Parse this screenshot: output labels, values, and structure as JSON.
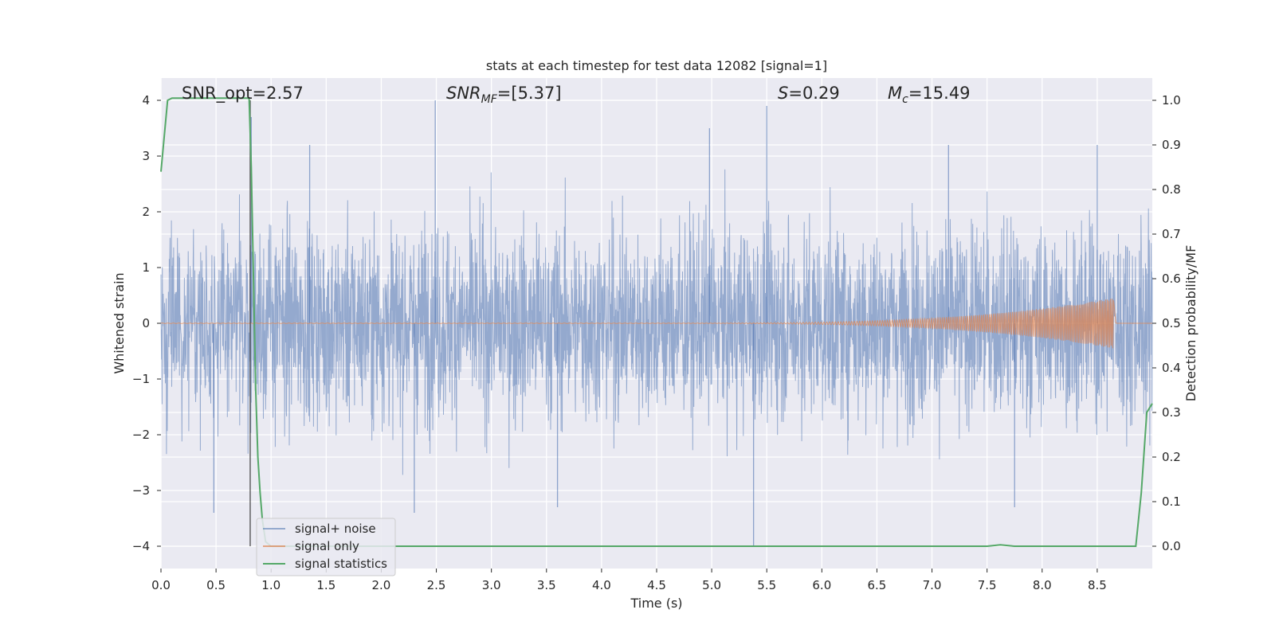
{
  "chart_data": {
    "type": "line",
    "title": "stats at each timestep for test data 12082 [signal=1]",
    "xlabel": "Time (s)",
    "ylabel": "Whitened strain",
    "ylabel_right": "Detection probability/MF",
    "xlim": [
      0.0,
      9.0
    ],
    "ylim": [
      -4.4,
      4.4
    ],
    "ylim_right": [
      -0.05,
      1.05
    ],
    "xticks": [
      "0.0",
      "0.5",
      "1.0",
      "1.5",
      "2.0",
      "2.5",
      "3.0",
      "3.5",
      "4.0",
      "4.5",
      "5.0",
      "5.5",
      "6.0",
      "6.5",
      "7.0",
      "7.5",
      "8.0",
      "8.5"
    ],
    "xtick_values": [
      0.0,
      0.5,
      1.0,
      1.5,
      2.0,
      2.5,
      3.0,
      3.5,
      4.0,
      4.5,
      5.0,
      5.5,
      6.0,
      6.5,
      7.0,
      7.5,
      8.0,
      8.5
    ],
    "yticks": [
      "−4",
      "−3",
      "−2",
      "−1",
      "0",
      "1",
      "2",
      "3",
      "4"
    ],
    "ytick_values": [
      -4,
      -3,
      -2,
      -1,
      0,
      1,
      2,
      3,
      4
    ],
    "yticks_right": [
      "0.0",
      "0.1",
      "0.2",
      "0.3",
      "0.4",
      "0.5",
      "0.6",
      "0.7",
      "0.8",
      "0.9",
      "1.0"
    ],
    "ytick_right_values": [
      0.0,
      0.1,
      0.2,
      0.3,
      0.4,
      0.5,
      0.6,
      0.7,
      0.8,
      0.9,
      1.0
    ],
    "grid": true,
    "legend_position": "lower-left",
    "annotations": {
      "snr_opt": "SNR_opt=2.57",
      "snr_mf_base": "SNR",
      "snr_mf_sub": "MF",
      "snr_mf_rest": "=[5.37]",
      "s_label": "S",
      "s_rest": "=0.29",
      "mc_base": "M",
      "mc_sub": "c",
      "mc_rest": "=15.49"
    },
    "vline_x": 0.81,
    "series": [
      {
        "name": "signal+ noise",
        "color": "#4c72b0",
        "axis": "left",
        "description_values": {
          "band_min": -4.0,
          "band_max": 4.0,
          "typical_amplitude": 2.5
        },
        "spikes": [
          {
            "x": 2.49,
            "y": 4.0
          },
          {
            "x": 5.38,
            "y": -4.0
          },
          {
            "x": 5.5,
            "y": 3.9
          },
          {
            "x": 4.98,
            "y": 3.5
          },
          {
            "x": 0.82,
            "y": 3.7
          },
          {
            "x": 1.35,
            "y": 3.2
          },
          {
            "x": 7.15,
            "y": 3.2
          },
          {
            "x": 8.5,
            "y": 3.2
          },
          {
            "x": 0.48,
            "y": -3.4
          },
          {
            "x": 2.3,
            "y": -3.4
          },
          {
            "x": 3.6,
            "y": -3.3
          },
          {
            "x": 7.75,
            "y": -3.3
          }
        ]
      },
      {
        "name": "signal only",
        "color": "#dd8452",
        "axis": "left",
        "chirp": {
          "start_x": 4.5,
          "peak_x": 8.65,
          "peak_amplitude": 0.45
        }
      },
      {
        "name": "signal statistics",
        "color": "#55a868",
        "axis": "right",
        "x": [
          0.0,
          0.06,
          0.1,
          0.8,
          0.82,
          0.84,
          0.86,
          0.88,
          0.9,
          0.92,
          0.95,
          1.0,
          2.0,
          4.0,
          6.0,
          7.5,
          7.62,
          7.75,
          8.0,
          8.85,
          8.9,
          8.95,
          9.0
        ],
        "y": [
          0.84,
          1.0,
          1.005,
          1.005,
          0.85,
          0.6,
          0.35,
          0.2,
          0.12,
          0.06,
          0.01,
          0.0,
          0.0,
          0.0,
          0.0,
          0.0,
          0.003,
          0.0,
          0.0,
          0.0,
          0.12,
          0.3,
          0.32
        ]
      }
    ]
  }
}
